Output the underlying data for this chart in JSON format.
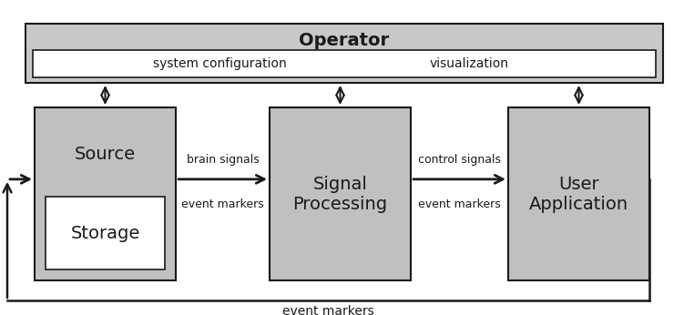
{
  "bg_color": "#ffffff",
  "operator_bg": "#c8c8c8",
  "operator_inner_bg": "#ffffff",
  "box_bg": "#c0c0c0",
  "storage_bg": "#ffffff",
  "operator_title": "Operator",
  "operator_left_text": "system configuration",
  "operator_right_text": "visualization",
  "signal_text": "Signal\nProcessing",
  "user_text": "User\nApplication",
  "label_brain_signals": "brain signals",
  "label_event_markers_1": "event markers",
  "label_control_signals": "control signals",
  "label_event_markers_2": "event markers",
  "label_bottom": "event markers",
  "text_color": "#1a1a1a",
  "arrow_color": "#1a1a1a",
  "border_color": "#1a1a1a",
  "figw": 7.51,
  "figh": 3.46,
  "dpi": 100
}
